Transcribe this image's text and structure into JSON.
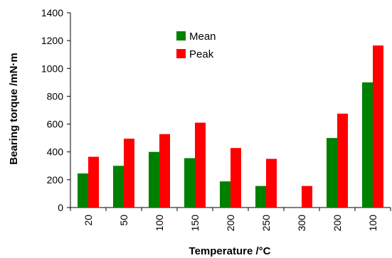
{
  "chart_data": {
    "type": "bar",
    "title": "",
    "xlabel": "Temperature /°C",
    "ylabel": "Bearing torque /mN·m",
    "categories": [
      "20",
      "50",
      "100",
      "150",
      "200",
      "250",
      "300",
      "200",
      "100"
    ],
    "series": [
      {
        "name": "Mean",
        "color": "#008000",
        "values": [
          245,
          300,
          400,
          355,
          188,
          155,
          null,
          500,
          900
        ]
      },
      {
        "name": "Peak",
        "color": "#ff0000",
        "values": [
          365,
          495,
          528,
          610,
          428,
          350,
          155,
          675,
          1165
        ]
      }
    ],
    "ylim": [
      0,
      1400
    ],
    "yticks": [
      0,
      200,
      400,
      600,
      800,
      1000,
      1200,
      1400
    ],
    "grid": false,
    "legend_position": "top-center"
  }
}
